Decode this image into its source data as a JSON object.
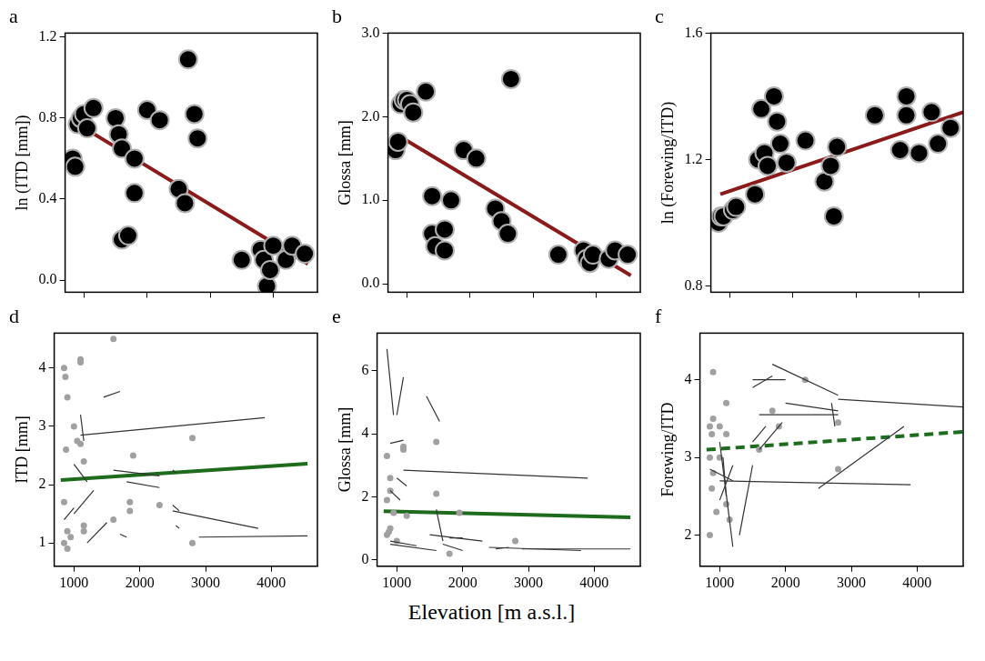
{
  "chart_data": [
    {
      "type": "scatter",
      "title": "a",
      "y_label": "ln (ITD [mm])",
      "xlim": [
        700,
        4700
      ],
      "xticks": [
        1000,
        2000,
        3000,
        4000
      ],
      "ylim": [
        -0.06,
        1.22
      ],
      "yticks": [
        {
          "value": 0,
          "label": "0.0"
        },
        0.4,
        0.8,
        1.2
      ],
      "grid": false,
      "tick_labels": "y",
      "points": {
        "color": "#000000",
        "marker": "circle",
        "x": [
          820,
          860,
          900,
          950,
          1000,
          1050,
          1150,
          1500,
          1550,
          1600,
          1600,
          1700,
          1800,
          1800,
          2000,
          2200,
          2500,
          2600,
          2650,
          2750,
          2800,
          3500,
          3800,
          3850,
          3900,
          3950,
          4000,
          4200,
          4300,
          4500
        ],
        "values": [
          0.6,
          0.56,
          0.77,
          0.8,
          0.82,
          0.75,
          0.85,
          0.8,
          0.72,
          0.65,
          0.2,
          0.22,
          0.43,
          0.6,
          0.84,
          0.79,
          0.45,
          0.38,
          1.09,
          0.82,
          0.7,
          0.1,
          0.15,
          0.1,
          -0.03,
          0.05,
          0.17,
          0.1,
          0.17,
          0.13
        ]
      },
      "fit": {
        "color": "#8b1a1a",
        "line_style": "solid",
        "x": [
          850,
          4550
        ],
        "values": [
          0.78,
          0.08
        ]
      }
    },
    {
      "type": "scatter",
      "title": "b",
      "y_label": "Glossa [mm]",
      "xlim": [
        700,
        4700
      ],
      "xticks": [
        1000,
        2000,
        3000,
        4000
      ],
      "ylim": [
        -0.1,
        3.0
      ],
      "yticks": [
        {
          "value": 0,
          "label": "0.0"
        },
        {
          "value": 1,
          "label": "1.0"
        },
        {
          "value": 2,
          "label": "2.0"
        },
        {
          "value": 3,
          "label": "3.0"
        }
      ],
      "grid": false,
      "tick_labels": "y",
      "points": {
        "color": "#000000",
        "marker": "circle",
        "x": [
          820,
          860,
          900,
          950,
          1000,
          1050,
          1100,
          1300,
          1400,
          1400,
          1450,
          1600,
          1600,
          1700,
          1900,
          2100,
          2400,
          2500,
          2600,
          2650,
          3400,
          3800,
          3850,
          3900,
          3950,
          4200,
          4300,
          4500
        ],
        "values": [
          1.6,
          1.7,
          2.15,
          2.2,
          2.2,
          2.15,
          2.05,
          2.3,
          1.05,
          0.6,
          0.45,
          0.65,
          0.4,
          1.0,
          1.6,
          1.5,
          0.9,
          0.75,
          0.6,
          2.45,
          0.35,
          0.4,
          0.3,
          0.25,
          0.35,
          0.3,
          0.4,
          0.35
        ]
      },
      "fit": {
        "color": "#8b1a1a",
        "line_style": "solid",
        "x": [
          850,
          4550
        ],
        "values": [
          1.78,
          0.1
        ]
      }
    },
    {
      "type": "scatter",
      "title": "c",
      "y_label": "ln (Forewing/ITD)",
      "xlim": [
        700,
        4700
      ],
      "xticks": [
        1000,
        2000,
        3000,
        4000
      ],
      "ylim": [
        0.78,
        1.6
      ],
      "yticks": [
        0.8,
        1.2,
        1.6
      ],
      "grid": false,
      "tick_labels": "y",
      "points": {
        "color": "#000000",
        "marker": "circle",
        "x": [
          820,
          860,
          900,
          1050,
          1100,
          1400,
          1450,
          1500,
          1550,
          1600,
          1700,
          1750,
          1800,
          1900,
          2200,
          2500,
          2600,
          2650,
          2700,
          3300,
          3700,
          3800,
          3800,
          4000,
          4200,
          4300,
          4500
        ],
        "values": [
          1.0,
          1.02,
          1.02,
          1.04,
          1.05,
          1.09,
          1.2,
          1.36,
          1.22,
          1.18,
          1.4,
          1.32,
          1.25,
          1.19,
          1.26,
          1.13,
          1.18,
          1.02,
          1.24,
          1.34,
          1.23,
          1.4,
          1.34,
          1.22,
          1.35,
          1.25,
          1.3
        ]
      },
      "fit": {
        "color": "#8b1a1a",
        "line_style": "solid",
        "x": [
          850,
          4700
        ],
        "values": [
          1.09,
          1.35
        ]
      }
    },
    {
      "type": "scatter",
      "title": "d",
      "y_label": "ITD [mm]",
      "xlim": [
        700,
        4700
      ],
      "xticks": [
        1000,
        2000,
        3000,
        4000
      ],
      "ylim": [
        0.6,
        4.6
      ],
      "yticks": [
        1,
        2,
        3,
        4
      ],
      "grid": false,
      "segments": {
        "color": "#333333",
        "lines": [
          [
            1100,
            2.85,
            3900,
            3.15
          ],
          [
            1450,
            3.5,
            1700,
            3.6
          ],
          [
            1000,
            2.35,
            1200,
            2.05
          ],
          [
            1100,
            3.2,
            1150,
            2.75
          ],
          [
            1600,
            2.25,
            2300,
            2.15
          ],
          [
            1800,
            2.05,
            2300,
            1.95
          ],
          [
            1000,
            1.5,
            1300,
            1.9
          ],
          [
            1200,
            1.0,
            1500,
            1.35
          ],
          [
            1700,
            1.15,
            1800,
            1.1
          ],
          [
            2500,
            1.55,
            3800,
            1.25
          ],
          [
            2500,
            1.65,
            2600,
            1.55
          ],
          [
            2550,
            1.3,
            2600,
            1.25
          ],
          [
            2900,
            1.1,
            4550,
            1.12
          ],
          [
            2500,
            2.25,
            2550,
            2.2
          ],
          [
            850,
            1.4,
            1000,
            1.6
          ]
        ]
      },
      "points": {
        "color": "#a0a0a0",
        "marker": "circle",
        "x": [
          850,
          870,
          900,
          880,
          850,
          900,
          850,
          900,
          950,
          1000,
          1050,
          1100,
          1100,
          1100,
          1150,
          1150,
          1600,
          1150,
          1600,
          1850,
          1900,
          2300,
          2800,
          2800,
          1850
        ],
        "values": [
          4.0,
          3.85,
          3.5,
          2.6,
          1.7,
          1.2,
          1.0,
          0.9,
          1.1,
          3.0,
          2.75,
          4.15,
          4.1,
          2.7,
          1.3,
          1.2,
          4.5,
          2.4,
          1.4,
          1.55,
          2.5,
          1.65,
          2.8,
          1.0,
          1.7
        ]
      },
      "fit": {
        "color": "#1e6b1e",
        "line_style": "solid",
        "x": [
          800,
          4550
        ],
        "values": [
          2.08,
          2.36
        ]
      }
    },
    {
      "type": "scatter",
      "title": "e",
      "y_label": "Glossa [mm]",
      "x_label": "Elevation [m a.s.l.]",
      "xlim": [
        700,
        4700
      ],
      "xticks": [
        1000,
        2000,
        3000,
        4000
      ],
      "ylim": [
        -0.2,
        7.2
      ],
      "yticks": [
        0,
        2,
        4,
        6
      ],
      "grid": false,
      "segments": {
        "color": "#333333",
        "lines": [
          [
            850,
            6.7,
            950,
            4.6
          ],
          [
            1000,
            4.6,
            1100,
            5.8
          ],
          [
            1450,
            5.2,
            1650,
            4.4
          ],
          [
            1100,
            2.85,
            3900,
            2.6
          ],
          [
            900,
            3.7,
            1100,
            3.8
          ],
          [
            900,
            2.2,
            1050,
            1.9
          ],
          [
            1000,
            2.6,
            1150,
            2.35
          ],
          [
            1600,
            1.6,
            1700,
            0.6
          ],
          [
            1500,
            0.8,
            2300,
            0.6
          ],
          [
            900,
            0.6,
            1300,
            0.45
          ],
          [
            900,
            0.5,
            1600,
            0.3
          ],
          [
            1700,
            0.5,
            2000,
            0.3
          ],
          [
            2400,
            0.4,
            3800,
            0.3
          ],
          [
            2500,
            0.35,
            2700,
            0.4
          ],
          [
            2900,
            0.35,
            4550,
            0.35
          ],
          [
            1800,
            0.7,
            2000,
            0.7
          ]
        ]
      },
      "points": {
        "color": "#a0a0a0",
        "marker": "circle",
        "x": [
          850,
          900,
          900,
          850,
          900,
          880,
          950,
          1100,
          1100,
          1000,
          1600,
          1150,
          1600,
          1800,
          2800,
          1950,
          850
        ],
        "values": [
          3.3,
          2.6,
          2.2,
          1.9,
          1.0,
          0.9,
          1.5,
          3.6,
          3.5,
          0.6,
          3.75,
          1.4,
          2.1,
          0.2,
          0.6,
          1.5,
          0.8
        ]
      },
      "fit": {
        "color": "#1e6b1e",
        "line_style": "solid",
        "x": [
          800,
          4550
        ],
        "values": [
          1.55,
          1.35
        ]
      }
    },
    {
      "type": "scatter",
      "title": "f",
      "y_label": "Forewing/ITD",
      "xlim": [
        700,
        4700
      ],
      "xticks": [
        1000,
        2000,
        3000,
        4000
      ],
      "ylim": [
        1.6,
        4.6
      ],
      "yticks": [
        2,
        3,
        4
      ],
      "grid": false,
      "segments": {
        "color": "#333333",
        "lines": [
          [
            1500,
            4.0,
            2000,
            4.0
          ],
          [
            1500,
            3.9,
            1800,
            4.05
          ],
          [
            1800,
            4.2,
            2800,
            3.8
          ],
          [
            2800,
            3.75,
            4700,
            3.65
          ],
          [
            1600,
            3.55,
            2800,
            3.55
          ],
          [
            2000,
            3.7,
            2800,
            3.6
          ],
          [
            2700,
            3.7,
            2750,
            3.4
          ],
          [
            1000,
            2.7,
            3900,
            2.65
          ],
          [
            850,
            2.85,
            1200,
            2.7
          ],
          [
            1000,
            3.2,
            1200,
            1.85
          ],
          [
            1100,
            2.5,
            1050,
            3.0
          ],
          [
            1300,
            2.0,
            1500,
            2.9
          ],
          [
            1600,
            3.1,
            1950,
            3.45
          ],
          [
            1500,
            3.2,
            1700,
            3.4
          ],
          [
            2500,
            2.6,
            3800,
            3.4
          ],
          [
            1000,
            2.45,
            1200,
            2.9
          ]
        ]
      },
      "points": {
        "color": "#a0a0a0",
        "marker": "circle",
        "x": [
          900,
          900,
          850,
          880,
          850,
          900,
          880,
          850,
          950,
          1000,
          1100,
          1100,
          1150,
          1100,
          1600,
          1800,
          1900,
          2300,
          2800,
          2800,
          1000
        ],
        "values": [
          4.1,
          3.5,
          3.4,
          3.3,
          3.0,
          2.8,
          2.6,
          2.0,
          2.3,
          3.0,
          3.7,
          3.3,
          2.2,
          2.4,
          3.1,
          3.6,
          3.4,
          4.0,
          2.85,
          3.45,
          3.4
        ]
      },
      "fit": {
        "color": "#1e6b1e",
        "line_style": "dashed",
        "x": [
          800,
          4700
        ],
        "values": [
          3.1,
          3.33
        ]
      }
    }
  ]
}
